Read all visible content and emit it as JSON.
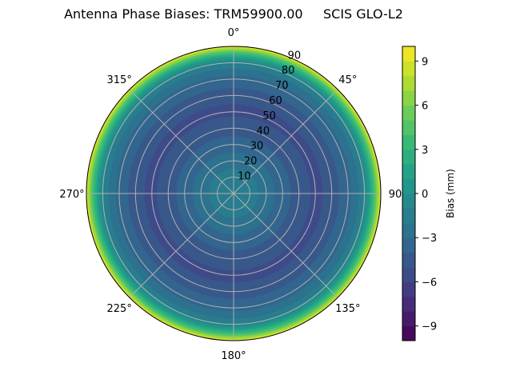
{
  "chart_data": {
    "type": "heatmap",
    "subtype": "polar-contour",
    "title": "Antenna Phase Biases: TRM59900.00     SCIS GLO-L2",
    "theta_ticks": [
      "0°",
      "45°",
      "90",
      "135°",
      "180°",
      "225°",
      "270°",
      "315°"
    ],
    "r_ticks": [
      "10",
      "20",
      "30",
      "40",
      "50",
      "60",
      "70",
      "80",
      "90"
    ],
    "r_range": [
      0,
      90
    ],
    "theta_zero": "north",
    "theta_direction": "clockwise",
    "grid": true,
    "colormap": "viridis",
    "colorbar": {
      "label": "Bias (mm)",
      "range": [
        -10,
        10
      ],
      "levels_step": 1,
      "ticks": [
        "−9",
        "−6",
        "−3",
        "0",
        "3",
        "6",
        "9"
      ],
      "tick_values": [
        -9,
        -6,
        -3,
        0,
        3,
        6,
        9
      ]
    },
    "radial_profile": {
      "zenith": [
        0,
        10,
        20,
        30,
        40,
        50,
        55,
        60,
        70,
        75,
        80,
        84,
        87,
        89,
        90
      ],
      "bias": [
        -1.0,
        -1.5,
        -2.5,
        -3.5,
        -4.5,
        -5.2,
        -5.0,
        -4.5,
        -3.5,
        -2.5,
        -1.0,
        1.5,
        4.5,
        7.5,
        9.0
      ]
    }
  }
}
